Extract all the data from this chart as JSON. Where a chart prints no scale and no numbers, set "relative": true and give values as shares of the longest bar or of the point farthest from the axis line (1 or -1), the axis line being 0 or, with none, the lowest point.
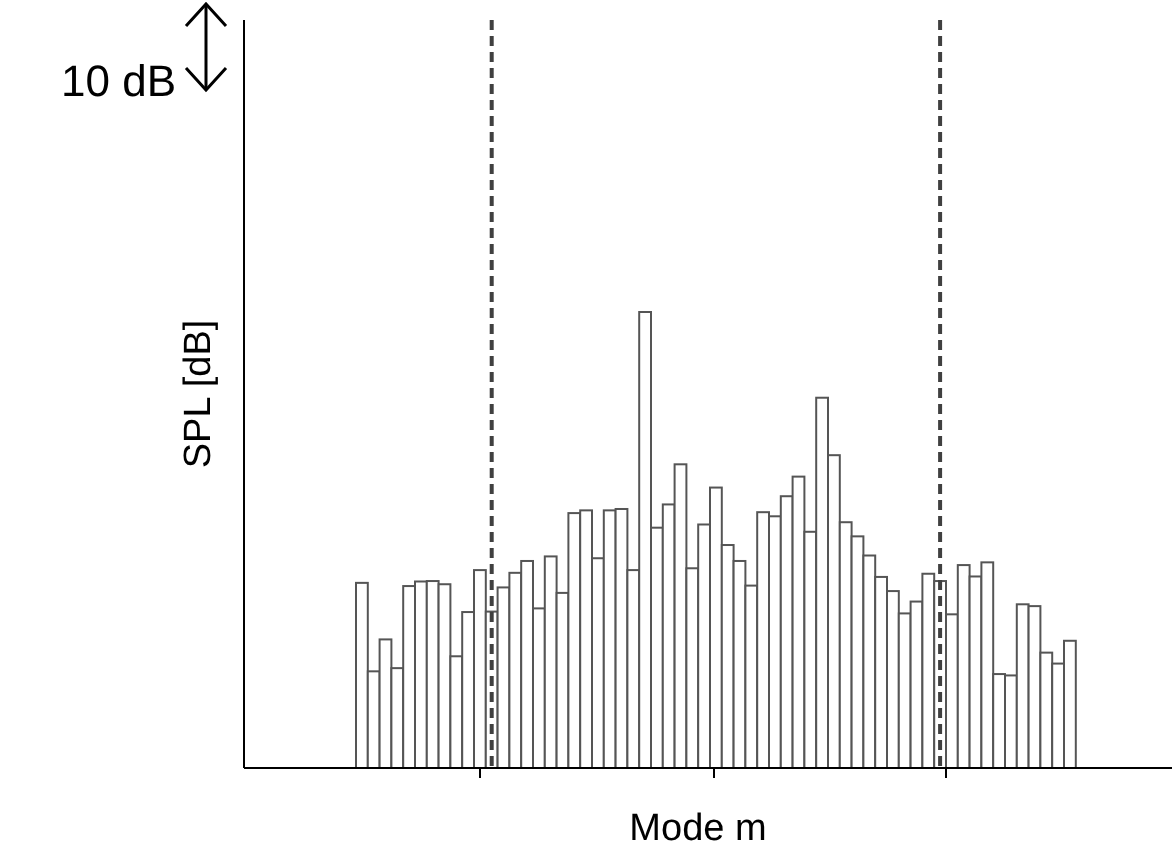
{
  "chart_data": {
    "type": "bar",
    "xlabel": "Mode m",
    "ylabel": "SPL [dB]",
    "relative": true,
    "categories": [
      null,
      null,
      null,
      null,
      null,
      null,
      null,
      null,
      null,
      null,
      null,
      null,
      null,
      null,
      null,
      null,
      null,
      null,
      null,
      null,
      null,
      null,
      null,
      null,
      null,
      null,
      null,
      null,
      null,
      null,
      null,
      null,
      null,
      null,
      null,
      null,
      null,
      null,
      null,
      null,
      null,
      null,
      null,
      null,
      null,
      null,
      null,
      null,
      null,
      null,
      null,
      null,
      null,
      null,
      null,
      null,
      null,
      null,
      null,
      null,
      null
    ],
    "series": [
      {
        "color": "#ffffff",
        "values": [
          0.406,
          0.212,
          0.282,
          0.219,
          0.399,
          0.409,
          0.41,
          0.403,
          0.245,
          0.342,
          0.434,
          0.343,
          0.396,
          0.428,
          0.454,
          0.35,
          0.464,
          0.384,
          0.559,
          0.565,
          0.46,
          0.565,
          0.568,
          0.434,
          1,
          0.527,
          0.578,
          0.666,
          0.438,
          0.534,
          0.615,
          0.489,
          0.454,
          0.4,
          0.561,
          0.552,
          0.596,
          0.639,
          0.518,
          0.812,
          0.686,
          0.539,
          0.508,
          0.466,
          0.419,
          0.388,
          0.339,
          0.365,
          0.426,
          0.41,
          0.337,
          0.445,
          0.42,
          0.451,
          0.206,
          0.203,
          0.359,
          0.355,
          0.253,
          0.229,
          0.279
        ]
      }
    ],
    "annotations": [
      "10 dB"
    ]
  }
}
